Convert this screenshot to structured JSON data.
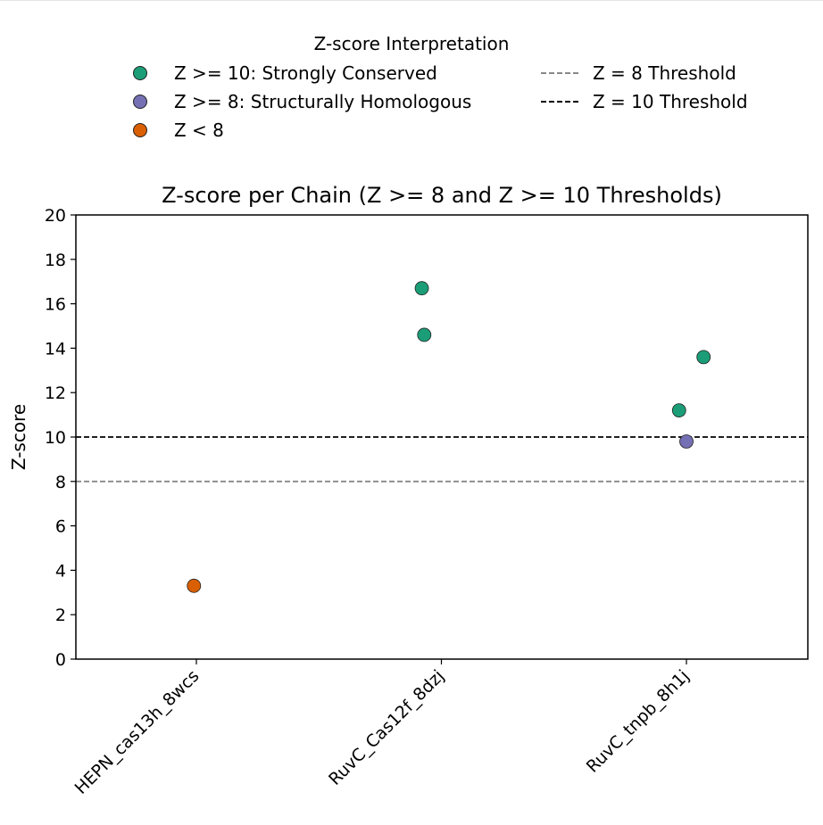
{
  "legend": {
    "title": "Z-score Interpretation",
    "items": [
      {
        "label": "Z >= 10: Strongly Conserved",
        "kind": "marker",
        "color": "#1b9e77"
      },
      {
        "label": "Z >= 8: Structurally Homologous",
        "kind": "marker",
        "color": "#7570b3"
      },
      {
        "label": "Z < 8",
        "kind": "marker",
        "color": "#d95f02"
      },
      {
        "label": "Z = 8 Threshold",
        "kind": "line",
        "color": "#888888"
      },
      {
        "label": "Z = 10 Threshold",
        "kind": "line",
        "color": "#000000"
      }
    ]
  },
  "chart_data": {
    "type": "scatter",
    "title": "Z-score per Chain (Z >= 8 and Z >= 10 Thresholds)",
    "xlabel": "",
    "ylabel": "Z-score",
    "categories": [
      "HEPN_cas13h_8wcs",
      "RuvC_Cas12f_8dzj",
      "RuvC_tnpb_8h1j"
    ],
    "ylim": [
      0,
      20
    ],
    "yticks": [
      0,
      2,
      4,
      6,
      8,
      10,
      12,
      14,
      16,
      18,
      20
    ],
    "grid": false,
    "legend_position": "top-center, above plot",
    "thresholds": [
      {
        "value": 8,
        "label": "Z = 8 Threshold",
        "color": "#888888"
      },
      {
        "value": 10,
        "label": "Z = 10 Threshold",
        "color": "#000000"
      }
    ],
    "series": [
      {
        "name": "Z >= 10: Strongly Conserved",
        "color": "#1b9e77",
        "points": [
          {
            "category": "RuvC_Cas12f_8dzj",
            "jitter": -0.08,
            "y": 16.7
          },
          {
            "category": "RuvC_Cas12f_8dzj",
            "jitter": -0.07,
            "y": 14.6
          },
          {
            "category": "RuvC_tnpb_8h1j",
            "jitter": -0.03,
            "y": 11.2
          },
          {
            "category": "RuvC_tnpb_8h1j",
            "jitter": 0.07,
            "y": 13.6
          }
        ]
      },
      {
        "name": "Z >= 8: Structurally Homologous",
        "color": "#7570b3",
        "points": [
          {
            "category": "RuvC_tnpb_8h1j",
            "jitter": 0.0,
            "y": 9.8
          }
        ]
      },
      {
        "name": "Z < 8",
        "color": "#d95f02",
        "points": [
          {
            "category": "HEPN_cas13h_8wcs",
            "jitter": -0.01,
            "y": 3.3
          }
        ]
      }
    ]
  }
}
